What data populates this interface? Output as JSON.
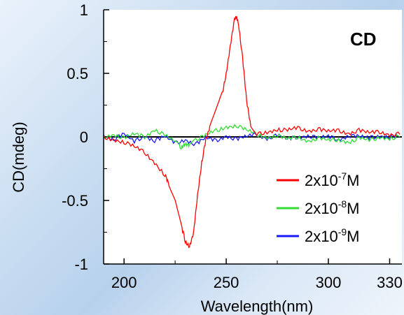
{
  "chart_data": {
    "type": "line",
    "title": "",
    "xlabel": "Wavelength(nm)",
    "ylabel": "CD(mdeg)",
    "annotation": "CD",
    "xlim": [
      190,
      336
    ],
    "ylim": [
      -1,
      1
    ],
    "x_ticks": [
      200,
      250,
      300,
      330
    ],
    "y_ticks": [
      1,
      0.5,
      0,
      -0.5,
      -1
    ],
    "y_tick_labels": [
      "1",
      "0.5",
      "0",
      "-0.5",
      "-1"
    ],
    "x_tick_labels": [
      "200",
      "250",
      "300",
      "330"
    ],
    "zero_line": true,
    "legend_position": "lower-right",
    "series": [
      {
        "name": "2x10-7M",
        "name_base": "2x10",
        "name_exp": "-7",
        "name_unit": "M",
        "color": "#ff0000",
        "x": [
          190,
          195,
          200,
          205,
          210,
          215,
          220,
          222,
          225,
          228,
          230,
          232,
          234,
          236,
          238,
          240,
          242,
          245,
          248,
          250,
          252,
          254,
          255,
          256,
          258,
          260,
          262,
          265,
          270,
          275,
          280,
          285,
          290,
          295,
          300,
          305,
          310,
          315,
          320,
          325,
          330,
          335
        ],
        "y": [
          0.0,
          -0.02,
          -0.04,
          -0.08,
          -0.12,
          -0.2,
          -0.3,
          -0.38,
          -0.5,
          -0.7,
          -0.82,
          -0.86,
          -0.75,
          -0.45,
          -0.2,
          -0.03,
          0.07,
          0.2,
          0.34,
          0.5,
          0.72,
          0.93,
          0.95,
          0.9,
          0.62,
          0.28,
          0.08,
          0.02,
          0.04,
          0.06,
          0.05,
          0.07,
          0.05,
          0.06,
          0.04,
          0.05,
          0.03,
          0.05,
          0.03,
          0.04,
          0.02,
          0.02
        ]
      },
      {
        "name": "2x10-8M",
        "name_base": "2x10",
        "name_exp": "-8",
        "name_unit": "M",
        "color": "#33dd33",
        "x": [
          190,
          195,
          200,
          205,
          210,
          215,
          220,
          225,
          228,
          230,
          232,
          235,
          240,
          245,
          250,
          255,
          260,
          265,
          270,
          275,
          280,
          285,
          290,
          295,
          300,
          305,
          310,
          315,
          320,
          325,
          330,
          335
        ],
        "y": [
          0.0,
          0.02,
          -0.01,
          0.02,
          0.0,
          0.06,
          0.01,
          -0.04,
          -0.08,
          -0.05,
          -0.06,
          -0.02,
          0.01,
          0.05,
          0.08,
          0.09,
          0.05,
          0.02,
          0.0,
          0.01,
          -0.02,
          0.0,
          -0.03,
          -0.01,
          -0.03,
          -0.02,
          -0.04,
          -0.01,
          -0.03,
          0.0,
          -0.01,
          0.0
        ]
      },
      {
        "name": "2x10-9M",
        "name_base": "2x10",
        "name_exp": "-9",
        "name_unit": "M",
        "color": "#1a1aff",
        "x": [
          190,
          195,
          200,
          205,
          210,
          215,
          220,
          225,
          230,
          235,
          240,
          245,
          250,
          255,
          260,
          265,
          270,
          275,
          280,
          285,
          290,
          295,
          300,
          305,
          310,
          315,
          320,
          325,
          330,
          335
        ],
        "y": [
          0.01,
          -0.02,
          0.02,
          -0.04,
          0.01,
          -0.03,
          0.0,
          -0.05,
          -0.02,
          -0.06,
          -0.01,
          -0.03,
          0.01,
          -0.02,
          0.0,
          0.02,
          -0.01,
          0.01,
          -0.02,
          0.0,
          0.01,
          -0.01,
          0.0,
          -0.02,
          0.01,
          0.0,
          -0.01,
          0.01,
          0.0,
          0.0
        ]
      }
    ]
  }
}
